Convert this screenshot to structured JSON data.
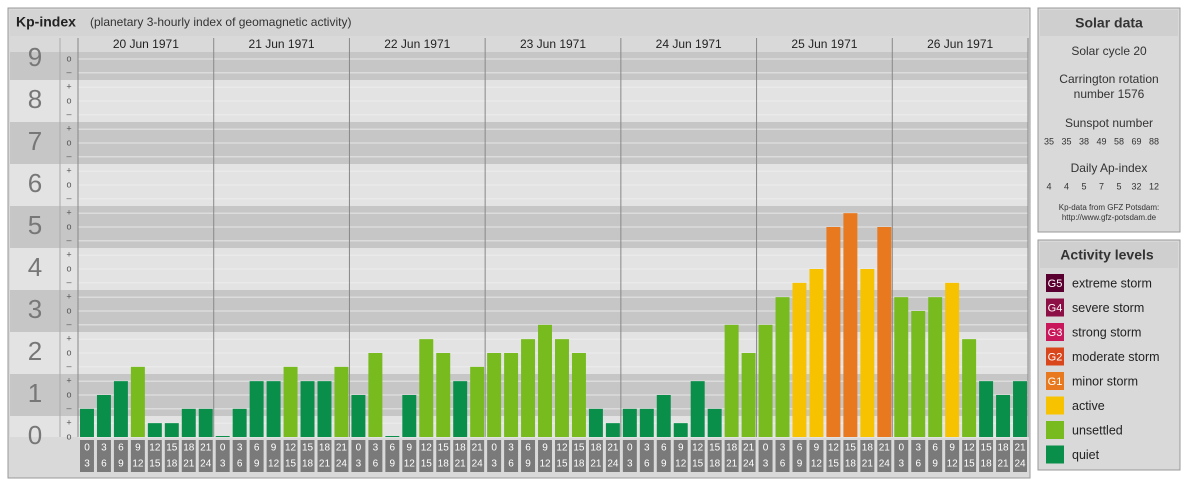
{
  "chart_data": {
    "type": "bar",
    "title": "Kp-index",
    "subtitle": "(planetary 3-hourly index of geomagnetic activity)",
    "ylim": [
      0,
      9
    ],
    "yticks": [
      0,
      1,
      2,
      3,
      4,
      5,
      6,
      7,
      8,
      9
    ],
    "minor_ticks": [
      {
        "value": 0,
        "label": "o"
      },
      {
        "value": 0.33,
        "label": "+"
      },
      {
        "value": 0.67,
        "label": "–"
      },
      {
        "value": 1,
        "label": "o"
      },
      {
        "value": 1.33,
        "label": "+"
      },
      {
        "value": 1.67,
        "label": "–"
      },
      {
        "value": 2,
        "label": "o"
      },
      {
        "value": 2.33,
        "label": "+"
      },
      {
        "value": 2.67,
        "label": "–"
      },
      {
        "value": 3,
        "label": "o"
      },
      {
        "value": 3.33,
        "label": "+"
      },
      {
        "value": 3.67,
        "label": "–"
      },
      {
        "value": 4,
        "label": "o"
      },
      {
        "value": 4.33,
        "label": "+"
      },
      {
        "value": 4.67,
        "label": "–"
      },
      {
        "value": 5,
        "label": "o"
      },
      {
        "value": 5.33,
        "label": "+"
      },
      {
        "value": 5.67,
        "label": "–"
      },
      {
        "value": 6,
        "label": "o"
      },
      {
        "value": 6.33,
        "label": "+"
      },
      {
        "value": 6.67,
        "label": "–"
      },
      {
        "value": 7,
        "label": "o"
      },
      {
        "value": 7.33,
        "label": "+"
      },
      {
        "value": 7.67,
        "label": "–"
      },
      {
        "value": 8,
        "label": "o"
      },
      {
        "value": 8.33,
        "label": "+"
      },
      {
        "value": 8.67,
        "label": "–"
      },
      {
        "value": 9,
        "label": "o"
      }
    ],
    "intervals": [
      [
        "0",
        "3"
      ],
      [
        "3",
        "6"
      ],
      [
        "6",
        "9"
      ],
      [
        "9",
        "12"
      ],
      [
        "12",
        "15"
      ],
      [
        "15",
        "18"
      ],
      [
        "18",
        "21"
      ],
      [
        "21",
        "24"
      ]
    ],
    "days": [
      {
        "label": "20 Jun 1971",
        "values": [
          0.67,
          1,
          1.33,
          1.67,
          0.33,
          0.33,
          0.67,
          0.67
        ],
        "colors": [
          "#0a8f4a",
          "#0a8f4a",
          "#0a8f4a",
          "#77bb1f",
          "#0a8f4a",
          "#0a8f4a",
          "#0a8f4a",
          "#0a8f4a"
        ]
      },
      {
        "label": "21 Jun 1971",
        "values": [
          0,
          0.67,
          1.33,
          1.33,
          1.67,
          1.33,
          1.33,
          1.67
        ],
        "colors": [
          "#0a8f4a",
          "#0a8f4a",
          "#0a8f4a",
          "#0a8f4a",
          "#77bb1f",
          "#0a8f4a",
          "#0a8f4a",
          "#77bb1f"
        ]
      },
      {
        "label": "22 Jun 1971",
        "values": [
          1,
          2,
          0,
          1,
          2.33,
          2,
          1.33,
          1.67
        ],
        "colors": [
          "#0a8f4a",
          "#77bb1f",
          "#0a8f4a",
          "#0a8f4a",
          "#77bb1f",
          "#77bb1f",
          "#0a8f4a",
          "#77bb1f"
        ]
      },
      {
        "label": "23 Jun 1971",
        "values": [
          2,
          2,
          2.33,
          2.67,
          2.33,
          2,
          0.67,
          0.33
        ],
        "colors": [
          "#77bb1f",
          "#77bb1f",
          "#77bb1f",
          "#77bb1f",
          "#77bb1f",
          "#77bb1f",
          "#0a8f4a",
          "#0a8f4a"
        ]
      },
      {
        "label": "24 Jun 1971",
        "values": [
          0.67,
          0.67,
          1,
          0.33,
          1.33,
          0.67,
          2.67,
          2
        ],
        "colors": [
          "#0a8f4a",
          "#0a8f4a",
          "#0a8f4a",
          "#0a8f4a",
          "#0a8f4a",
          "#0a8f4a",
          "#77bb1f",
          "#77bb1f"
        ]
      },
      {
        "label": "25 Jun 1971",
        "values": [
          2.67,
          3.33,
          3.67,
          4,
          5,
          5.33,
          4,
          5
        ],
        "colors": [
          "#77bb1f",
          "#77bb1f",
          "#f7c200",
          "#f7c200",
          "#e8791e",
          "#e8791e",
          "#f7c200",
          "#e8791e"
        ]
      },
      {
        "label": "26 Jun 1971",
        "values": [
          3.33,
          3,
          3.33,
          3.67,
          2.33,
          1.33,
          1,
          1.33
        ],
        "colors": [
          "#77bb1f",
          "#77bb1f",
          "#77bb1f",
          "#f7c200",
          "#77bb1f",
          "#0a8f4a",
          "#0a8f4a",
          "#0a8f4a"
        ]
      }
    ]
  },
  "solar": {
    "title": "Solar data",
    "cycle": "Solar cycle 20",
    "carrington": "Carrington rotation number 1576",
    "sunspot_title": "Sunspot number",
    "sunspot": [
      35,
      35,
      38,
      49,
      58,
      69,
      88
    ],
    "ap_title": "Daily Ap-index",
    "ap": [
      4,
      4,
      5,
      7,
      5,
      32,
      12
    ],
    "source": "Kp-data from GFZ Potsdam:",
    "url": "http://www.gfz-potsdam.de"
  },
  "activity": {
    "title": "Activity levels",
    "levels": [
      {
        "badge": "G5",
        "label": "extreme storm",
        "color": "#5a0030"
      },
      {
        "badge": "G4",
        "label": "severe storm",
        "color": "#8c0f45"
      },
      {
        "badge": "G3",
        "label": "strong storm",
        "color": "#c8175a"
      },
      {
        "badge": "G2",
        "label": "moderate storm",
        "color": "#d9461c"
      },
      {
        "badge": "G1",
        "label": "minor storm",
        "color": "#e8791e"
      },
      {
        "label": "active",
        "color": "#f7c200"
      },
      {
        "label": "unsettled",
        "color": "#77bb1f"
      },
      {
        "label": "quiet",
        "color": "#0a8f4a"
      }
    ]
  }
}
